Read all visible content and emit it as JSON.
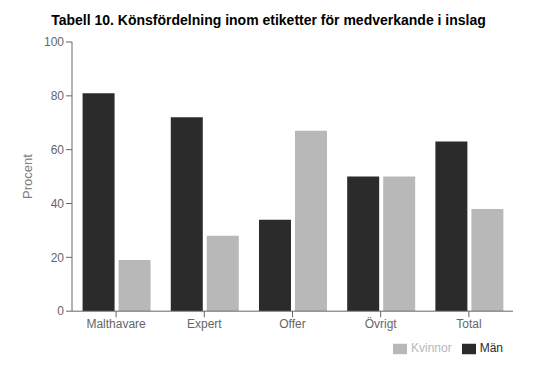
{
  "chart_data": {
    "type": "bar",
    "title": "Tabell 10. Könsfördelning inom etiketter för medverkande i inslag",
    "categories": [
      "Malthavare",
      "Expert",
      "Offer",
      "Övrigt",
      "Total"
    ],
    "series": [
      {
        "name": "Män",
        "color": "#2b2b2b",
        "values": [
          81,
          72,
          34,
          50,
          63
        ]
      },
      {
        "name": "Kvinnor",
        "color": "#b8b8b8",
        "values": [
          19,
          28,
          67,
          50,
          38
        ]
      }
    ],
    "ylabel": "Procent",
    "ylim": [
      0,
      100
    ],
    "yticks": [
      0,
      20,
      40,
      60,
      80,
      100
    ],
    "grid": false,
    "legend": "lower right"
  }
}
